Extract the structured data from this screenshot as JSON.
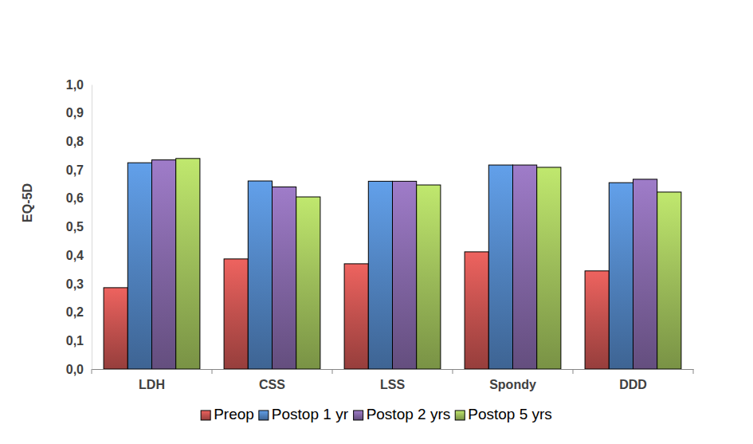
{
  "chart_data": {
    "type": "bar",
    "y_label": "EQ-5D",
    "categories": [
      "LDH",
      "CSS",
      "LSS",
      "Spondy",
      "DDD"
    ],
    "series": [
      {
        "name": "Preop",
        "color": "#c0504d",
        "values": [
          0.286,
          0.387,
          0.37,
          0.412,
          0.345
        ]
      },
      {
        "name": "Postop 1 yr",
        "color": "#4f81bd",
        "values": [
          0.725,
          0.661,
          0.66,
          0.717,
          0.655
        ]
      },
      {
        "name": "Postop 2 yrs",
        "color": "#8064a2",
        "values": [
          0.735,
          0.64,
          0.66,
          0.717,
          0.667
        ]
      },
      {
        "name": "Postop 5 yrs",
        "color": "#9bbb59",
        "values": [
          0.74,
          0.605,
          0.647,
          0.709,
          0.622
        ]
      }
    ],
    "ylim": [
      0,
      1
    ],
    "yticks": [
      {
        "value": 0,
        "label": "0,0"
      },
      {
        "value": 0.1,
        "label": "0,1"
      },
      {
        "value": 0.2,
        "label": "0,2"
      },
      {
        "value": 0.3,
        "label": "0,3"
      },
      {
        "value": 0.4,
        "label": "0,4"
      },
      {
        "value": 0.5,
        "label": "0,5"
      },
      {
        "value": 0.6,
        "label": "0,6"
      },
      {
        "value": 0.7,
        "label": "0,7"
      },
      {
        "value": 0.8,
        "label": "0,8"
      },
      {
        "value": 0.9,
        "label": "0,9"
      },
      {
        "value": 1,
        "label": "1,0"
      }
    ],
    "grid": false,
    "legend": "bottom"
  }
}
